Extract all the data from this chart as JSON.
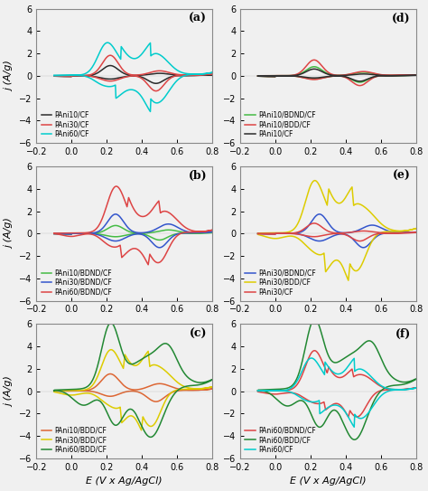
{
  "panels": [
    "(a)",
    "(b)",
    "(c)",
    "(d)",
    "(e)",
    "(f)"
  ],
  "xlim": [
    -0.2,
    0.8
  ],
  "ylim": [
    -6,
    6
  ],
  "xlabel": "E (V x Ag/AgCl)",
  "ylabel": "j (A/g)",
  "xticks": [
    -0.2,
    0.0,
    0.2,
    0.4,
    0.6,
    0.8
  ],
  "yticks": [
    -6,
    -4,
    -2,
    0,
    2,
    4,
    6
  ],
  "panel_a_legend": [
    "PAni10/CF",
    "PAni30/CF",
    "PAni60/CF"
  ],
  "panel_a_colors": [
    "#2b2b2b",
    "#dd4444",
    "#00cccc"
  ],
  "panel_b_legend": [
    "PAni10/BDND/CF",
    "PAni30/BDND/CF",
    "PAni60/BDND/CF"
  ],
  "panel_b_colors": [
    "#44bb44",
    "#3355cc",
    "#dd4444"
  ],
  "panel_c_legend": [
    "PAni10/BDD/CF",
    "PAni30/BDD/CF",
    "PAni60/BDD/CF"
  ],
  "panel_c_colors": [
    "#dd6633",
    "#ddcc00",
    "#228833"
  ],
  "panel_d_legend": [
    "PAni10/BDND/CF",
    "PAni10/BDD/CF",
    "PAni10/CF"
  ],
  "panel_d_colors": [
    "#44bb44",
    "#dd4444",
    "#2b2b2b"
  ],
  "panel_e_legend": [
    "PAni30/BDND/CF",
    "PAni30/BDD/CF",
    "PAni30/CF"
  ],
  "panel_e_colors": [
    "#3355cc",
    "#ddcc00",
    "#dd4444"
  ],
  "panel_f_legend": [
    "PAni60/BDND/CF",
    "PAni60/BDD/CF",
    "PAni60/CF"
  ],
  "panel_f_colors": [
    "#dd4444",
    "#228833",
    "#00cccc"
  ],
  "bg_color": "#f0f0f0"
}
